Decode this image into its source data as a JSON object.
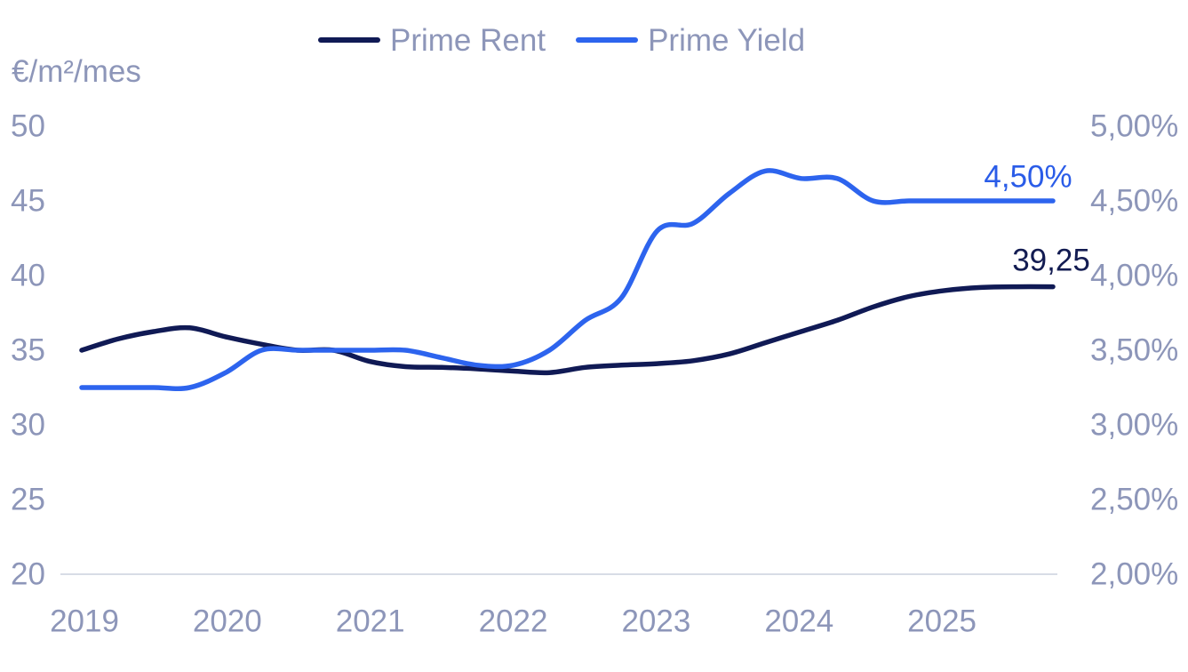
{
  "legend": {
    "items": [
      {
        "label": "Prime Rent",
        "color": "#101a55"
      },
      {
        "label": "Prime Yield",
        "color": "#2d64ee"
      }
    ]
  },
  "axes": {
    "left": {
      "title": "€/m²/mes",
      "ticks": [
        "50",
        "45",
        "40",
        "35",
        "30",
        "25",
        "20"
      ]
    },
    "right": {
      "ticks": [
        "5,00%",
        "4,50%",
        "4,00%",
        "3,50%",
        "3,00%",
        "2,50%",
        "2,00%"
      ]
    },
    "x": {
      "ticks": [
        "2019",
        "2020",
        "2021",
        "2022",
        "2023",
        "2024",
        "2025"
      ]
    }
  },
  "annotations": {
    "yield_last_label": "4,50%",
    "rent_last_label": "39,25"
  },
  "colors": {
    "rent_line": "#101a55",
    "yield_line": "#2d64ee",
    "rent_label": "#131c52",
    "yield_label": "#2a5ce8",
    "tick_text": "#8d96b9",
    "axis_line": "#ccd1de",
    "background": "#ffffff"
  },
  "chart_data": {
    "type": "line",
    "title": "",
    "x_unit": "quarter",
    "x": [
      "2019Q1",
      "2019Q2",
      "2019Q3",
      "2019Q4",
      "2020Q1",
      "2020Q2",
      "2020Q3",
      "2020Q4",
      "2021Q1",
      "2021Q2",
      "2021Q3",
      "2021Q4",
      "2022Q1",
      "2022Q2",
      "2022Q3",
      "2022Q4",
      "2023Q1",
      "2023Q2",
      "2023Q3",
      "2023Q4",
      "2024Q1",
      "2024Q2",
      "2024Q3",
      "2024Q4",
      "2025Q1",
      "2025Q2",
      "2025Q3",
      "2025Q4"
    ],
    "x_tick_labels": [
      "2019",
      "2020",
      "2021",
      "2022",
      "2023",
      "2024",
      "2025"
    ],
    "series": [
      {
        "name": "Prime Rent",
        "axis": "left",
        "unit": "€/m²/mes",
        "color": "#101a55",
        "last_value_label": "39,25",
        "values": [
          35.0,
          35.75,
          36.25,
          36.5,
          35.9,
          35.4,
          35.0,
          35.0,
          34.25,
          33.9,
          33.85,
          33.75,
          33.6,
          33.5,
          33.85,
          34.0,
          34.1,
          34.3,
          34.75,
          35.5,
          36.25,
          37.0,
          37.9,
          38.6,
          39.0,
          39.2,
          39.25,
          39.25
        ]
      },
      {
        "name": "Prime Yield",
        "axis": "right",
        "unit": "%",
        "color": "#2d64ee",
        "last_value_label": "4,50%",
        "values": [
          3.25,
          3.25,
          3.25,
          3.25,
          3.35,
          3.5,
          3.5,
          3.5,
          3.5,
          3.5,
          3.45,
          3.4,
          3.4,
          3.5,
          3.7,
          3.85,
          4.3,
          4.35,
          4.55,
          4.7,
          4.65,
          4.65,
          4.5,
          4.5,
          4.5,
          4.5,
          4.5,
          4.5
        ]
      }
    ],
    "left_ylabel": "€/m²/mes",
    "left_ylim": [
      20,
      50
    ],
    "right_ylim": [
      2.0,
      5.0
    ],
    "grid": false,
    "legend_position": "top-center",
    "smoothing": "spline"
  }
}
